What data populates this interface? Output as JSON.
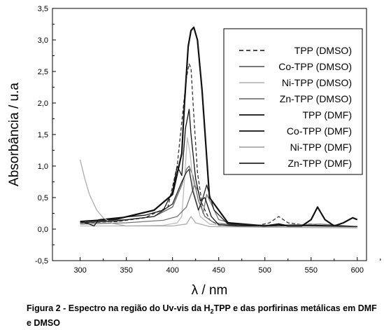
{
  "chart_data": {
    "type": "line",
    "xlabel": "λ / nm",
    "ylabel": "Absorbância / u.a",
    "xlim": [
      270,
      610
    ],
    "ylim": [
      -0.5,
      3.5
    ],
    "xticks": [
      "300",
      "350",
      "400",
      "450",
      "500",
      "550",
      "600"
    ],
    "yticks": [
      "-0,5",
      "0,0",
      "0,5",
      "1,0",
      "1,5",
      "2,0",
      "2,5",
      "3,0",
      "3,5"
    ],
    "grid": false,
    "legend_position": "top-right",
    "series": [
      {
        "name": "TPP (DMSO)",
        "color": "#333333",
        "dash": "dashed",
        "x": [
          300,
          340,
          370,
          395,
          405,
          410,
          415,
          418,
          420,
          423,
          427,
          432,
          440,
          450,
          490,
          505,
          515,
          525,
          540,
          550,
          560,
          580,
          600
        ],
        "y": [
          0.1,
          0.12,
          0.18,
          0.35,
          1.0,
          1.7,
          2.4,
          2.62,
          2.55,
          1.8,
          0.9,
          0.4,
          0.15,
          0.06,
          0.05,
          0.1,
          0.2,
          0.1,
          0.07,
          0.08,
          0.05,
          0.05,
          0.04
        ]
      },
      {
        "name": "Co-TPP (DMSO)",
        "color": "#666666",
        "dash": "solid",
        "x": [
          300,
          350,
          380,
          400,
          410,
          415,
          418,
          422,
          428,
          435,
          445,
          470,
          500,
          530,
          560,
          600
        ],
        "y": [
          0.12,
          0.15,
          0.2,
          0.35,
          0.7,
          0.95,
          1.0,
          0.85,
          0.45,
          0.2,
          0.1,
          0.06,
          0.05,
          0.07,
          0.06,
          0.04
        ]
      },
      {
        "name": "Ni-TPP (DMSO)",
        "color": "#bbbbbb",
        "dash": "solid",
        "x": [
          300,
          350,
          390,
          405,
          410,
          413,
          416,
          419,
          423,
          430,
          440,
          460,
          500,
          530,
          560,
          600
        ],
        "y": [
          0.05,
          0.05,
          0.06,
          0.1,
          0.2,
          0.8,
          1.45,
          1.2,
          0.6,
          0.2,
          0.08,
          0.05,
          0.04,
          0.06,
          0.04,
          0.03
        ]
      },
      {
        "name": "Zn-TPP (DMSO)",
        "color": "#777777",
        "dash": "solid",
        "x": [
          300,
          350,
          390,
          405,
          415,
          420,
          424,
          428,
          433,
          437,
          442,
          450,
          470,
          510,
          560,
          600
        ],
        "y": [
          0.08,
          0.1,
          0.14,
          0.2,
          0.35,
          0.55,
          0.7,
          0.6,
          0.25,
          0.55,
          0.4,
          0.15,
          0.07,
          0.06,
          0.08,
          0.04
        ]
      },
      {
        "name": "TPP (DMF)",
        "color": "#111111",
        "dash": "solid",
        "x": [
          300,
          340,
          380,
          400,
          410,
          413,
          417,
          420,
          423,
          427,
          432,
          440,
          460,
          500,
          515,
          525,
          540,
          550,
          557,
          565,
          575,
          585,
          595,
          600
        ],
        "y": [
          0.12,
          0.16,
          0.3,
          0.55,
          1.2,
          2.0,
          2.9,
          3.15,
          3.2,
          3.0,
          2.2,
          0.5,
          0.1,
          0.05,
          0.08,
          0.05,
          0.05,
          0.15,
          0.35,
          0.15,
          0.05,
          0.1,
          0.18,
          0.15
        ]
      },
      {
        "name": "Co-TPP (DMF)",
        "color": "#111111",
        "dash": "solid",
        "x": [
          300,
          310,
          315,
          320,
          340,
          370,
          390,
          400,
          405,
          410,
          414,
          418,
          420,
          425,
          430,
          435,
          442,
          450,
          470,
          500,
          560,
          600
        ],
        "y": [
          0.12,
          0.08,
          0.05,
          0.15,
          0.18,
          0.22,
          0.3,
          0.6,
          1.0,
          0.85,
          1.6,
          1.9,
          1.5,
          0.8,
          0.45,
          0.5,
          0.2,
          0.07,
          0.05,
          0.05,
          0.06,
          0.04
        ]
      },
      {
        "name": "Ni-TPP (DMF)",
        "color": "#aaaaaa",
        "dash": "solid",
        "x": [
          300,
          305,
          310,
          318,
          325,
          335,
          350,
          400,
          415,
          420,
          425,
          440,
          500,
          600
        ],
        "y": [
          1.1,
          0.8,
          0.55,
          0.3,
          0.18,
          0.09,
          0.05,
          0.05,
          0.08,
          0.2,
          0.1,
          0.04,
          0.03,
          0.02
        ]
      },
      {
        "name": "Zn-TPP (DMF)",
        "color": "#222222",
        "dash": "solid",
        "x": [
          300,
          340,
          380,
          400,
          410,
          415,
          418,
          422,
          428,
          432,
          437,
          445,
          460,
          500,
          560,
          600
        ],
        "y": [
          0.1,
          0.13,
          0.2,
          0.4,
          0.75,
          0.9,
          0.95,
          0.6,
          0.3,
          0.45,
          0.7,
          0.3,
          0.08,
          0.05,
          0.05,
          0.04
        ]
      }
    ]
  },
  "caption": {
    "before_sub": "Figura 2 - Espectro na região do Uv-vis da H",
    "sub": "2",
    "after_sub": "TPP e das porfirinas metálicas em DMF e DMSO"
  }
}
